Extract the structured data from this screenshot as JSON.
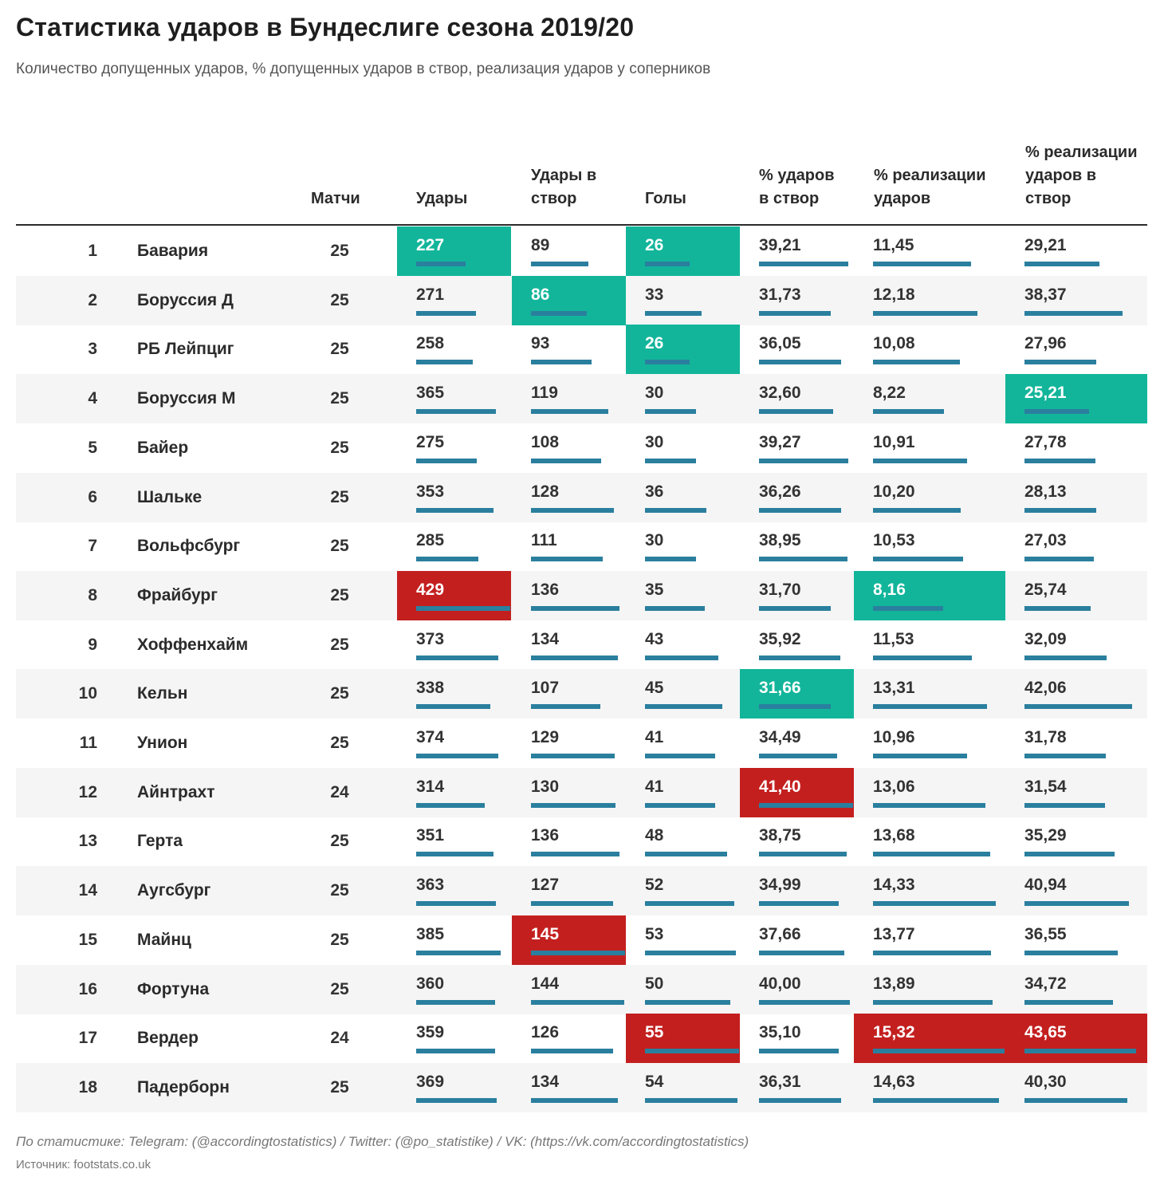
{
  "chart_data": {
    "type": "table",
    "title": "Статистика ударов в Бундеслиге сезона 2019/20",
    "subtitle": "Количество допущенных ударов, % допущенных ударов в створ, реализация ударов у соперников",
    "headers": {
      "matches": "Матчи",
      "shots": "Удары",
      "shots_on_target": "Удары в створ",
      "goals": "Голы",
      "pct_on_target": "% ударов в створ",
      "pct_conversion": "% реализации ударов",
      "pct_conversion_on_target": "% реализации ударов в створ"
    },
    "rows": [
      {
        "rank": "1",
        "team": "Бавария",
        "matches": "25",
        "shots": "227",
        "on_target": "89",
        "goals": "26",
        "pct_on_target": "39,21",
        "pct_conv": "11,45",
        "pct_conv_ot": "29,21"
      },
      {
        "rank": "2",
        "team": "Боруссия Д",
        "matches": "25",
        "shots": "271",
        "on_target": "86",
        "goals": "33",
        "pct_on_target": "31,73",
        "pct_conv": "12,18",
        "pct_conv_ot": "38,37"
      },
      {
        "rank": "3",
        "team": "РБ Лейпциг",
        "matches": "25",
        "shots": "258",
        "on_target": "93",
        "goals": "26",
        "pct_on_target": "36,05",
        "pct_conv": "10,08",
        "pct_conv_ot": "27,96"
      },
      {
        "rank": "4",
        "team": "Боруссия М",
        "matches": "25",
        "shots": "365",
        "on_target": "119",
        "goals": "30",
        "pct_on_target": "32,60",
        "pct_conv": "8,22",
        "pct_conv_ot": "25,21"
      },
      {
        "rank": "5",
        "team": "Байер",
        "matches": "25",
        "shots": "275",
        "on_target": "108",
        "goals": "30",
        "pct_on_target": "39,27",
        "pct_conv": "10,91",
        "pct_conv_ot": "27,78"
      },
      {
        "rank": "6",
        "team": "Шальке",
        "matches": "25",
        "shots": "353",
        "on_target": "128",
        "goals": "36",
        "pct_on_target": "36,26",
        "pct_conv": "10,20",
        "pct_conv_ot": "28,13"
      },
      {
        "rank": "7",
        "team": "Вольфсбург",
        "matches": "25",
        "shots": "285",
        "on_target": "111",
        "goals": "30",
        "pct_on_target": "38,95",
        "pct_conv": "10,53",
        "pct_conv_ot": "27,03"
      },
      {
        "rank": "8",
        "team": "Фрайбург",
        "matches": "25",
        "shots": "429",
        "on_target": "136",
        "goals": "35",
        "pct_on_target": "31,70",
        "pct_conv": "8,16",
        "pct_conv_ot": "25,74"
      },
      {
        "rank": "9",
        "team": "Хоффенхайм",
        "matches": "25",
        "shots": "373",
        "on_target": "134",
        "goals": "43",
        "pct_on_target": "35,92",
        "pct_conv": "11,53",
        "pct_conv_ot": "32,09"
      },
      {
        "rank": "10",
        "team": "Кельн",
        "matches": "25",
        "shots": "338",
        "on_target": "107",
        "goals": "45",
        "pct_on_target": "31,66",
        "pct_conv": "13,31",
        "pct_conv_ot": "42,06"
      },
      {
        "rank": "11",
        "team": "Унион",
        "matches": "25",
        "shots": "374",
        "on_target": "129",
        "goals": "41",
        "pct_on_target": "34,49",
        "pct_conv": "10,96",
        "pct_conv_ot": "31,78"
      },
      {
        "rank": "12",
        "team": "Айнтрахт",
        "matches": "24",
        "shots": "314",
        "on_target": "130",
        "goals": "41",
        "pct_on_target": "41,40",
        "pct_conv": "13,06",
        "pct_conv_ot": "31,54"
      },
      {
        "rank": "13",
        "team": "Герта",
        "matches": "25",
        "shots": "351",
        "on_target": "136",
        "goals": "48",
        "pct_on_target": "38,75",
        "pct_conv": "13,68",
        "pct_conv_ot": "35,29"
      },
      {
        "rank": "14",
        "team": "Аугсбург",
        "matches": "25",
        "shots": "363",
        "on_target": "127",
        "goals": "52",
        "pct_on_target": "34,99",
        "pct_conv": "14,33",
        "pct_conv_ot": "40,94"
      },
      {
        "rank": "15",
        "team": "Майнц",
        "matches": "25",
        "shots": "385",
        "on_target": "145",
        "goals": "53",
        "pct_on_target": "37,66",
        "pct_conv": "13,77",
        "pct_conv_ot": "36,55"
      },
      {
        "rank": "16",
        "team": "Фортуна",
        "matches": "25",
        "shots": "360",
        "on_target": "144",
        "goals": "50",
        "pct_on_target": "40,00",
        "pct_conv": "13,89",
        "pct_conv_ot": "34,72"
      },
      {
        "rank": "17",
        "team": "Вердер",
        "matches": "24",
        "shots": "359",
        "on_target": "126",
        "goals": "55",
        "pct_on_target": "35,10",
        "pct_conv": "15,32",
        "pct_conv_ot": "43,65"
      },
      {
        "rank": "18",
        "team": "Падерборн",
        "matches": "25",
        "shots": "369",
        "on_target": "134",
        "goals": "54",
        "pct_on_target": "36,31",
        "pct_conv": "14,63",
        "pct_conv_ot": "40,30"
      }
    ],
    "highlights_best": [
      {
        "row": 1,
        "column": "shots"
      },
      {
        "row": 1,
        "column": "goals"
      },
      {
        "row": 2,
        "column": "on_target"
      },
      {
        "row": 3,
        "column": "goals"
      },
      {
        "row": 4,
        "column": "pct_conv_ot"
      },
      {
        "row": 8,
        "column": "pct_conv"
      },
      {
        "row": 10,
        "column": "pct_on_target"
      }
    ],
    "highlights_worst": [
      {
        "row": 8,
        "column": "shots"
      },
      {
        "row": 12,
        "column": "pct_on_target"
      },
      {
        "row": 15,
        "column": "on_target"
      },
      {
        "row": 17,
        "column": "goals"
      },
      {
        "row": 17,
        "column": "pct_conv"
      },
      {
        "row": 17,
        "column": "pct_conv_ot"
      }
    ]
  },
  "colors": {
    "best": "#12b59a",
    "worst": "#c41f1f",
    "bar": "#2a7f9e",
    "row_alt": "#f5f5f5"
  },
  "footer": {
    "credits": "По статистике: Telegram: (@accordingtostatistics) / Twitter: (@po_statistike) / VK: (https://vk.com/accordingtostatistics)",
    "source": "Источник: footstats.co.uk"
  }
}
